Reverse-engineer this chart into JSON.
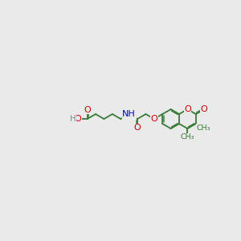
{
  "bg_color": "#eaeaea",
  "bond_color": "#3a7a3a",
  "O_color": "#cc0000",
  "N_color": "#0000cc",
  "H_color": "#888888",
  "bond_lw": 1.3,
  "font_size": 8.0,
  "BL": 0.52,
  "figsize": [
    3.0,
    3.0
  ],
  "dpi": 100,
  "xlim": [
    0,
    10
  ],
  "ylim": [
    0,
    10
  ],
  "lrc_x": 7.55,
  "lrc_y": 5.15
}
